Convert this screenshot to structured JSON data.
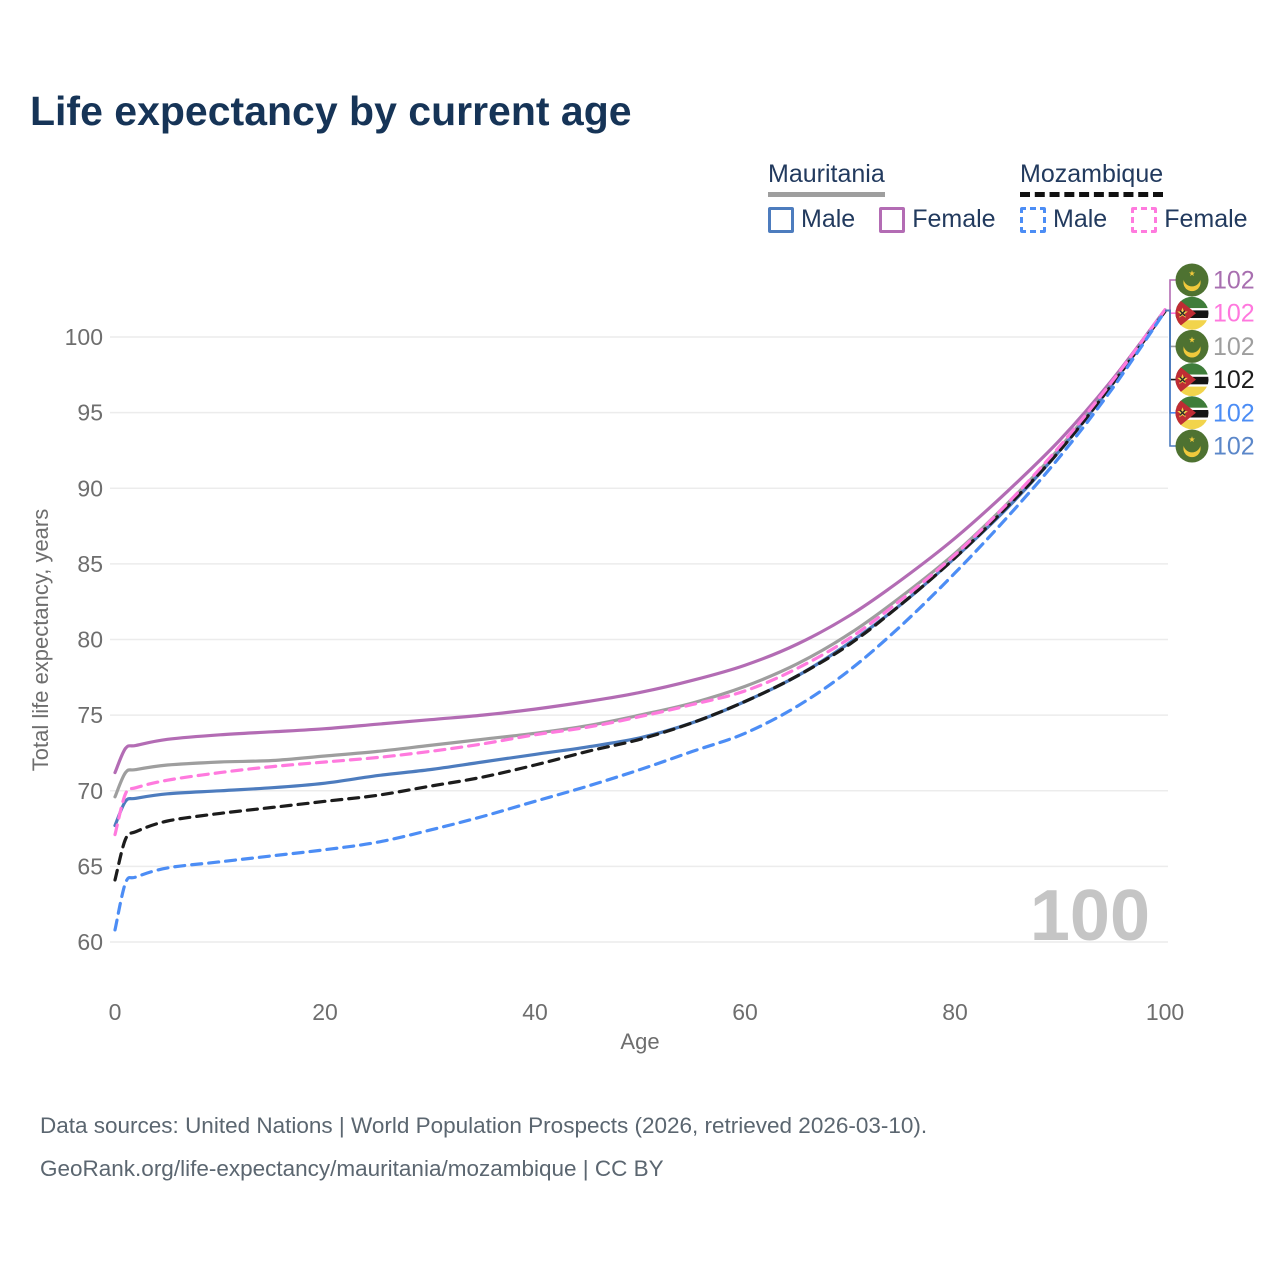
{
  "title": "Life expectancy by current age",
  "legend": {
    "mauritania": {
      "label": "Mauritania",
      "line_style": "solid",
      "line_color": "#9e9e9e",
      "male_label": "Male",
      "male_color": "#4d7cbe",
      "female_label": "Female",
      "female_color": "#b36cb4"
    },
    "mozambique": {
      "label": "Mozambique",
      "line_style": "dashed",
      "line_color": "#1c1c1c",
      "male_label": "Male",
      "male_color": "#4c8df5",
      "female_label": "Female",
      "female_color": "#ff7ade"
    }
  },
  "hover_indicator": {
    "age": "100"
  },
  "footer": {
    "line1": "Data sources: United Nations | World Population Prospects (2026, retrieved 2026-03-10).",
    "line2": "GeoRank.org/life-expectancy/mauritania/mozambique | CC BY"
  },
  "colors": {
    "title_text": "#163457",
    "legend_text": "#223a5e",
    "axis_text": "#6e6e6e",
    "grid": "#ececec",
    "watermark": "#c5c5c5",
    "footer_text": "#5b6670"
  },
  "chart_data": {
    "type": "line",
    "title": "Life expectancy by current age",
    "xlabel": "Age",
    "ylabel": "Total life expectancy, years",
    "xlim": [
      0,
      100
    ],
    "ylim": [
      60,
      102
    ],
    "xticks": [
      0,
      20,
      40,
      60,
      80,
      100
    ],
    "yticks": [
      60,
      65,
      70,
      75,
      80,
      85,
      90,
      95,
      100
    ],
    "grid": "horizontal",
    "legend_position": "top-right",
    "x": [
      0,
      1,
      2,
      5,
      10,
      15,
      20,
      25,
      30,
      35,
      40,
      45,
      50,
      55,
      60,
      65,
      70,
      75,
      80,
      85,
      90,
      95,
      100
    ],
    "series": [
      {
        "name": "Mauritania Female",
        "country": "Mauritania",
        "sex": "Female",
        "color": "#b36cb4",
        "dash": false,
        "end_label": "102",
        "values": [
          71.2,
          72.8,
          73.0,
          73.4,
          73.7,
          73.9,
          74.1,
          74.4,
          74.7,
          75.0,
          75.4,
          75.9,
          76.5,
          77.3,
          78.3,
          79.7,
          81.6,
          84.0,
          86.7,
          89.8,
          93.2,
          97.2,
          101.8
        ]
      },
      {
        "name": "Mauritania All",
        "country": "Mauritania",
        "sex": "All",
        "color": "#9e9e9e",
        "dash": false,
        "end_label": "102",
        "values": [
          69.6,
          71.2,
          71.4,
          71.7,
          71.9,
          72.0,
          72.3,
          72.6,
          73.0,
          73.4,
          73.8,
          74.3,
          75.0,
          75.8,
          76.9,
          78.4,
          80.4,
          82.9,
          85.7,
          89.0,
          92.7,
          97.0,
          101.7
        ]
      },
      {
        "name": "Mauritania Male",
        "country": "Mauritania",
        "sex": "Male",
        "color": "#4d7cbe",
        "dash": false,
        "end_label": "102",
        "values": [
          67.7,
          69.3,
          69.5,
          69.8,
          70.0,
          70.2,
          70.5,
          71.0,
          71.4,
          71.9,
          72.4,
          72.9,
          73.5,
          74.5,
          75.9,
          77.6,
          79.8,
          82.4,
          85.4,
          88.7,
          92.5,
          96.9,
          101.7
        ]
      },
      {
        "name": "Mozambique All",
        "country": "Mozambique",
        "sex": "All",
        "color": "#1c1c1c",
        "dash": true,
        "end_label": "102",
        "values": [
          64.1,
          66.8,
          67.3,
          68.0,
          68.5,
          68.9,
          69.3,
          69.7,
          70.3,
          70.9,
          71.7,
          72.6,
          73.4,
          74.5,
          75.9,
          77.6,
          79.7,
          82.4,
          85.4,
          88.8,
          92.5,
          96.9,
          101.7
        ]
      },
      {
        "name": "Mozambique Female",
        "country": "Mozambique",
        "sex": "Female",
        "color": "#ff7ade",
        "dash": true,
        "end_label": "102",
        "values": [
          67.1,
          69.8,
          70.2,
          70.7,
          71.2,
          71.6,
          71.9,
          72.2,
          72.6,
          73.1,
          73.7,
          74.2,
          74.9,
          75.7,
          76.6,
          78.1,
          80.1,
          82.7,
          85.6,
          89.0,
          92.8,
          97.1,
          101.8
        ]
      },
      {
        "name": "Mozambique Male",
        "country": "Mozambique",
        "sex": "Male",
        "color": "#4c8df5",
        "dash": true,
        "end_label": "102",
        "values": [
          60.8,
          63.9,
          64.3,
          64.9,
          65.3,
          65.7,
          66.1,
          66.6,
          67.4,
          68.3,
          69.3,
          70.3,
          71.4,
          72.6,
          73.8,
          75.6,
          78.0,
          81.0,
          84.4,
          88.1,
          92.1,
          96.6,
          101.7
        ]
      }
    ],
    "right_column": [
      {
        "series": "Mauritania Female",
        "flag": "mauritania",
        "label": "102",
        "label_color": "#a86fb0"
      },
      {
        "series": "Mozambique Female",
        "flag": "mozambique",
        "label": "102",
        "label_color": "#ff78de"
      },
      {
        "series": "Mauritania All",
        "flag": "mauritania",
        "label": "102",
        "label_color": "#9e9e9e"
      },
      {
        "series": "Mozambique All",
        "flag": "mozambique",
        "label": "102",
        "label_color": "#1c1c1c"
      },
      {
        "series": "Mozambique Male",
        "flag": "mozambique",
        "label": "102",
        "label_color": "#4c8df5"
      },
      {
        "series": "Mauritania Male",
        "flag": "mauritania",
        "label": "102",
        "label_color": "#5b87c9"
      }
    ]
  }
}
